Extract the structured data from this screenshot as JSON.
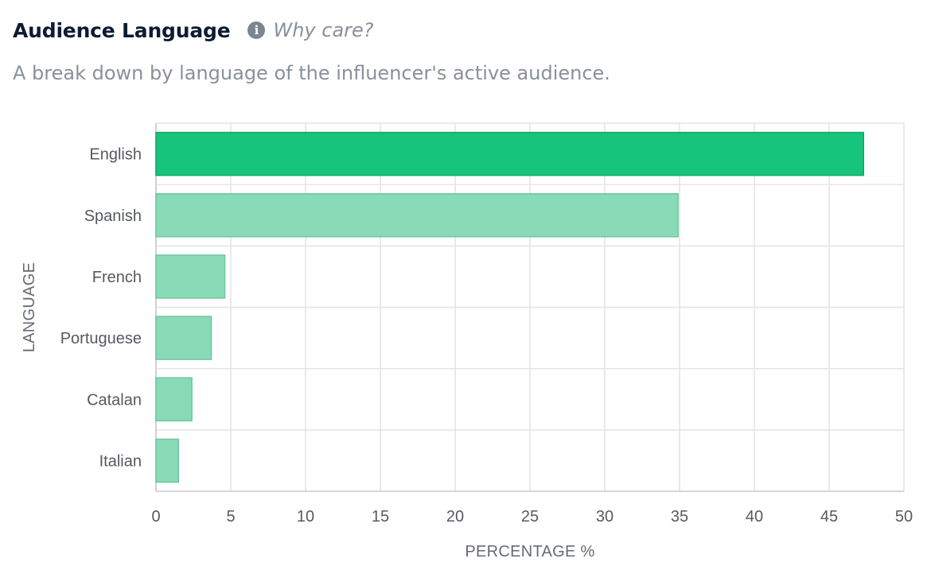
{
  "header": {
    "title": "Audience Language",
    "help_icon": "info-icon",
    "help_text": "Why care?"
  },
  "subtitle": "A break down by language of the influencer's active audience.",
  "chart_data": {
    "type": "bar",
    "orientation": "horizontal",
    "categories": [
      "English",
      "Spanish",
      "French",
      "Portuguese",
      "Catalan",
      "Italian"
    ],
    "values": [
      47.3,
      34.9,
      4.6,
      3.7,
      2.4,
      1.5
    ],
    "xlabel": "PERCENTAGE %",
    "ylabel": "LANGUAGE",
    "xlim": [
      0,
      50
    ],
    "xticks": [
      0,
      5,
      10,
      15,
      20,
      25,
      30,
      35,
      40,
      45,
      50
    ],
    "grid": true,
    "colors": {
      "highlight": "#17c47b",
      "highlight_border": "#12a766",
      "bar": "#88dbb6",
      "bar_border": "#6cc79d",
      "grid": "#e4e4e4",
      "axis": "#c8c8c8"
    }
  }
}
